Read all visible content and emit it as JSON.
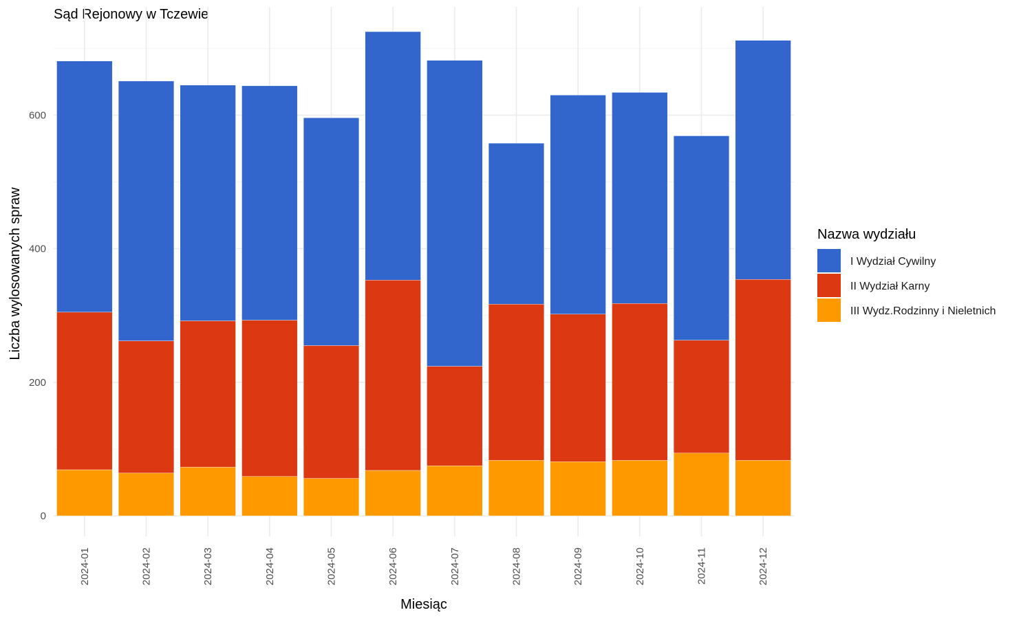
{
  "chart_data": {
    "type": "bar",
    "stacked": true,
    "title": "Sąd Rejonowy w Tczewie",
    "xlabel": "Miesiąc",
    "ylabel": "Liczba wylosowanych spraw",
    "ylim": [
      0,
      730
    ],
    "y_ticks": [
      0,
      200,
      400,
      600
    ],
    "y_tick_labels": [
      "0",
      "200",
      "400",
      "600"
    ],
    "grid": true,
    "legend_title": "Nazwa wydziału",
    "legend_position": "right",
    "categories": [
      "2024-01",
      "2024-02",
      "2024-03",
      "2024-04",
      "2024-05",
      "2024-06",
      "2024-07",
      "2024-08",
      "2024-09",
      "2024-10",
      "2024-11",
      "2024-12"
    ],
    "series": [
      {
        "name": "III Wydz.Rodzinny i Nieletnich",
        "color": "#ff9900",
        "values": [
          69,
          64,
          73,
          59,
          56,
          68,
          75,
          83,
          81,
          83,
          94,
          83
        ]
      },
      {
        "name": "II Wydział Karny",
        "color": "#dc3912",
        "values": [
          236,
          198,
          219,
          234,
          199,
          285,
          149,
          234,
          221,
          235,
          169,
          271
        ]
      },
      {
        "name": "I Wydział Cywilny",
        "color": "#3366cc",
        "values": [
          376,
          389,
          353,
          351,
          341,
          372,
          458,
          241,
          328,
          316,
          306,
          358
        ]
      }
    ],
    "legend_order": [
      "I Wydział Cywilny",
      "II Wydział Karny",
      "III Wydz.Rodzinny i Nieletnich"
    ]
  }
}
